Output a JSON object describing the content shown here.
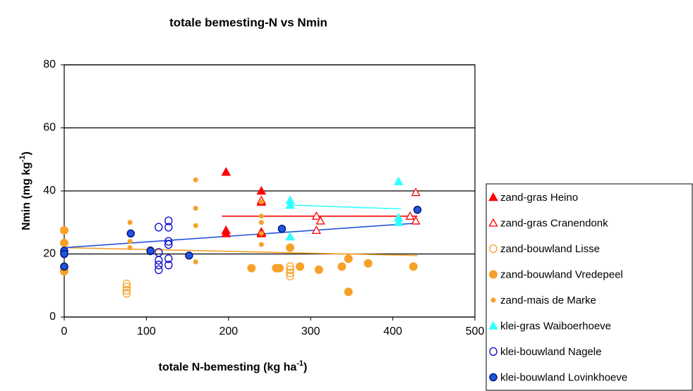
{
  "chart_data": {
    "type": "scatter",
    "title": "totale bemesting-N vs Nmin",
    "x_label": [
      "totale N-bemesting (kg ha",
      "-1",
      ")"
    ],
    "y_label": [
      "Nmin (mg kg",
      "-1",
      ")"
    ],
    "xlim": [
      0,
      500
    ],
    "ylim": [
      0,
      80
    ],
    "xticks": [
      0,
      100,
      200,
      300,
      400,
      500
    ],
    "yticks": [
      0,
      20,
      40,
      60,
      80
    ],
    "grid": true,
    "legend": "right",
    "series": [
      {
        "name": "zand-gras Heino",
        "color": "#ff0000",
        "marker": "triangle",
        "x": [
          197,
          197,
          197,
          240,
          240,
          240,
          240
        ],
        "values": [
          46,
          27.5,
          26.5,
          40,
          36.5,
          27,
          26.5
        ],
        "trend": {
          "x": [
            192,
            430
          ],
          "values": [
            32,
            32
          ]
        }
      },
      {
        "name": "zand-gras Cranendonk",
        "color": "#ff0000",
        "marker": "triangle-open",
        "x": [
          240,
          307,
          307,
          312,
          421,
          428,
          428
        ],
        "values": [
          37,
          32,
          27.5,
          30.5,
          32,
          39.5,
          30.5
        ]
      },
      {
        "name": "zand-bouwland Lisse",
        "color": "#f7a128",
        "marker": "circle-open",
        "x": [
          76,
          76,
          76,
          76,
          275,
          275,
          275,
          275
        ],
        "values": [
          10.5,
          9.5,
          8.5,
          7.5,
          16,
          15,
          14,
          13
        ]
      },
      {
        "name": "zand-bouwland Vredepeel",
        "color": "#f7a128",
        "marker": "circle",
        "x": [
          0,
          0,
          0,
          0,
          0,
          228,
          258,
          262,
          275,
          287,
          310,
          338,
          346,
          346,
          370,
          425
        ],
        "values": [
          27.5,
          23.5,
          16,
          15,
          14.5,
          15.5,
          15.5,
          15.5,
          22,
          16,
          15,
          16,
          18.5,
          8,
          17,
          16
        ],
        "trend": {
          "x": [
            0,
            430
          ],
          "values": [
            22,
            19.5
          ]
        }
      },
      {
        "name": "zand-mais de Marke",
        "color": "#f7a128",
        "marker": "dot",
        "x": [
          80,
          80,
          80,
          160,
          160,
          160,
          160,
          240,
          240,
          240,
          240,
          240
        ],
        "values": [
          30,
          24,
          22,
          43.5,
          34.5,
          29,
          17.5,
          36.5,
          32,
          30,
          26.5,
          23
        ]
      },
      {
        "name": "klei-gras Waiboerhoeve",
        "color": "#33ffff",
        "marker": "triangle",
        "x": [
          275,
          275,
          275,
          407,
          407,
          407
        ],
        "values": [
          37,
          35.5,
          25.5,
          43,
          31.5,
          30
        ],
        "trend": {
          "x": [
            275,
            410
          ],
          "values": [
            35.5,
            34.3
          ]
        }
      },
      {
        "name": "klei-bouwland Nagele",
        "color": "#0000cc",
        "marker": "circle-open",
        "x": [
          105,
          115,
          115,
          115,
          115,
          115,
          127,
          127,
          127,
          127,
          127,
          127
        ],
        "values": [
          21,
          28.5,
          20.5,
          18,
          16.5,
          15,
          30.5,
          28.5,
          24,
          23,
          18.5,
          16.5
        ]
      },
      {
        "name": "klei-bouwland Lovinkhoeve",
        "color": "#2255dd",
        "marker": "circle-dark",
        "x": [
          0,
          0,
          0,
          81,
          105,
          152,
          265,
          430
        ],
        "values": [
          21,
          20,
          16,
          26.5,
          21,
          19.5,
          28,
          34
        ],
        "trend": {
          "x": [
            0,
            430
          ],
          "values": [
            22,
            29.8
          ]
        }
      }
    ]
  }
}
